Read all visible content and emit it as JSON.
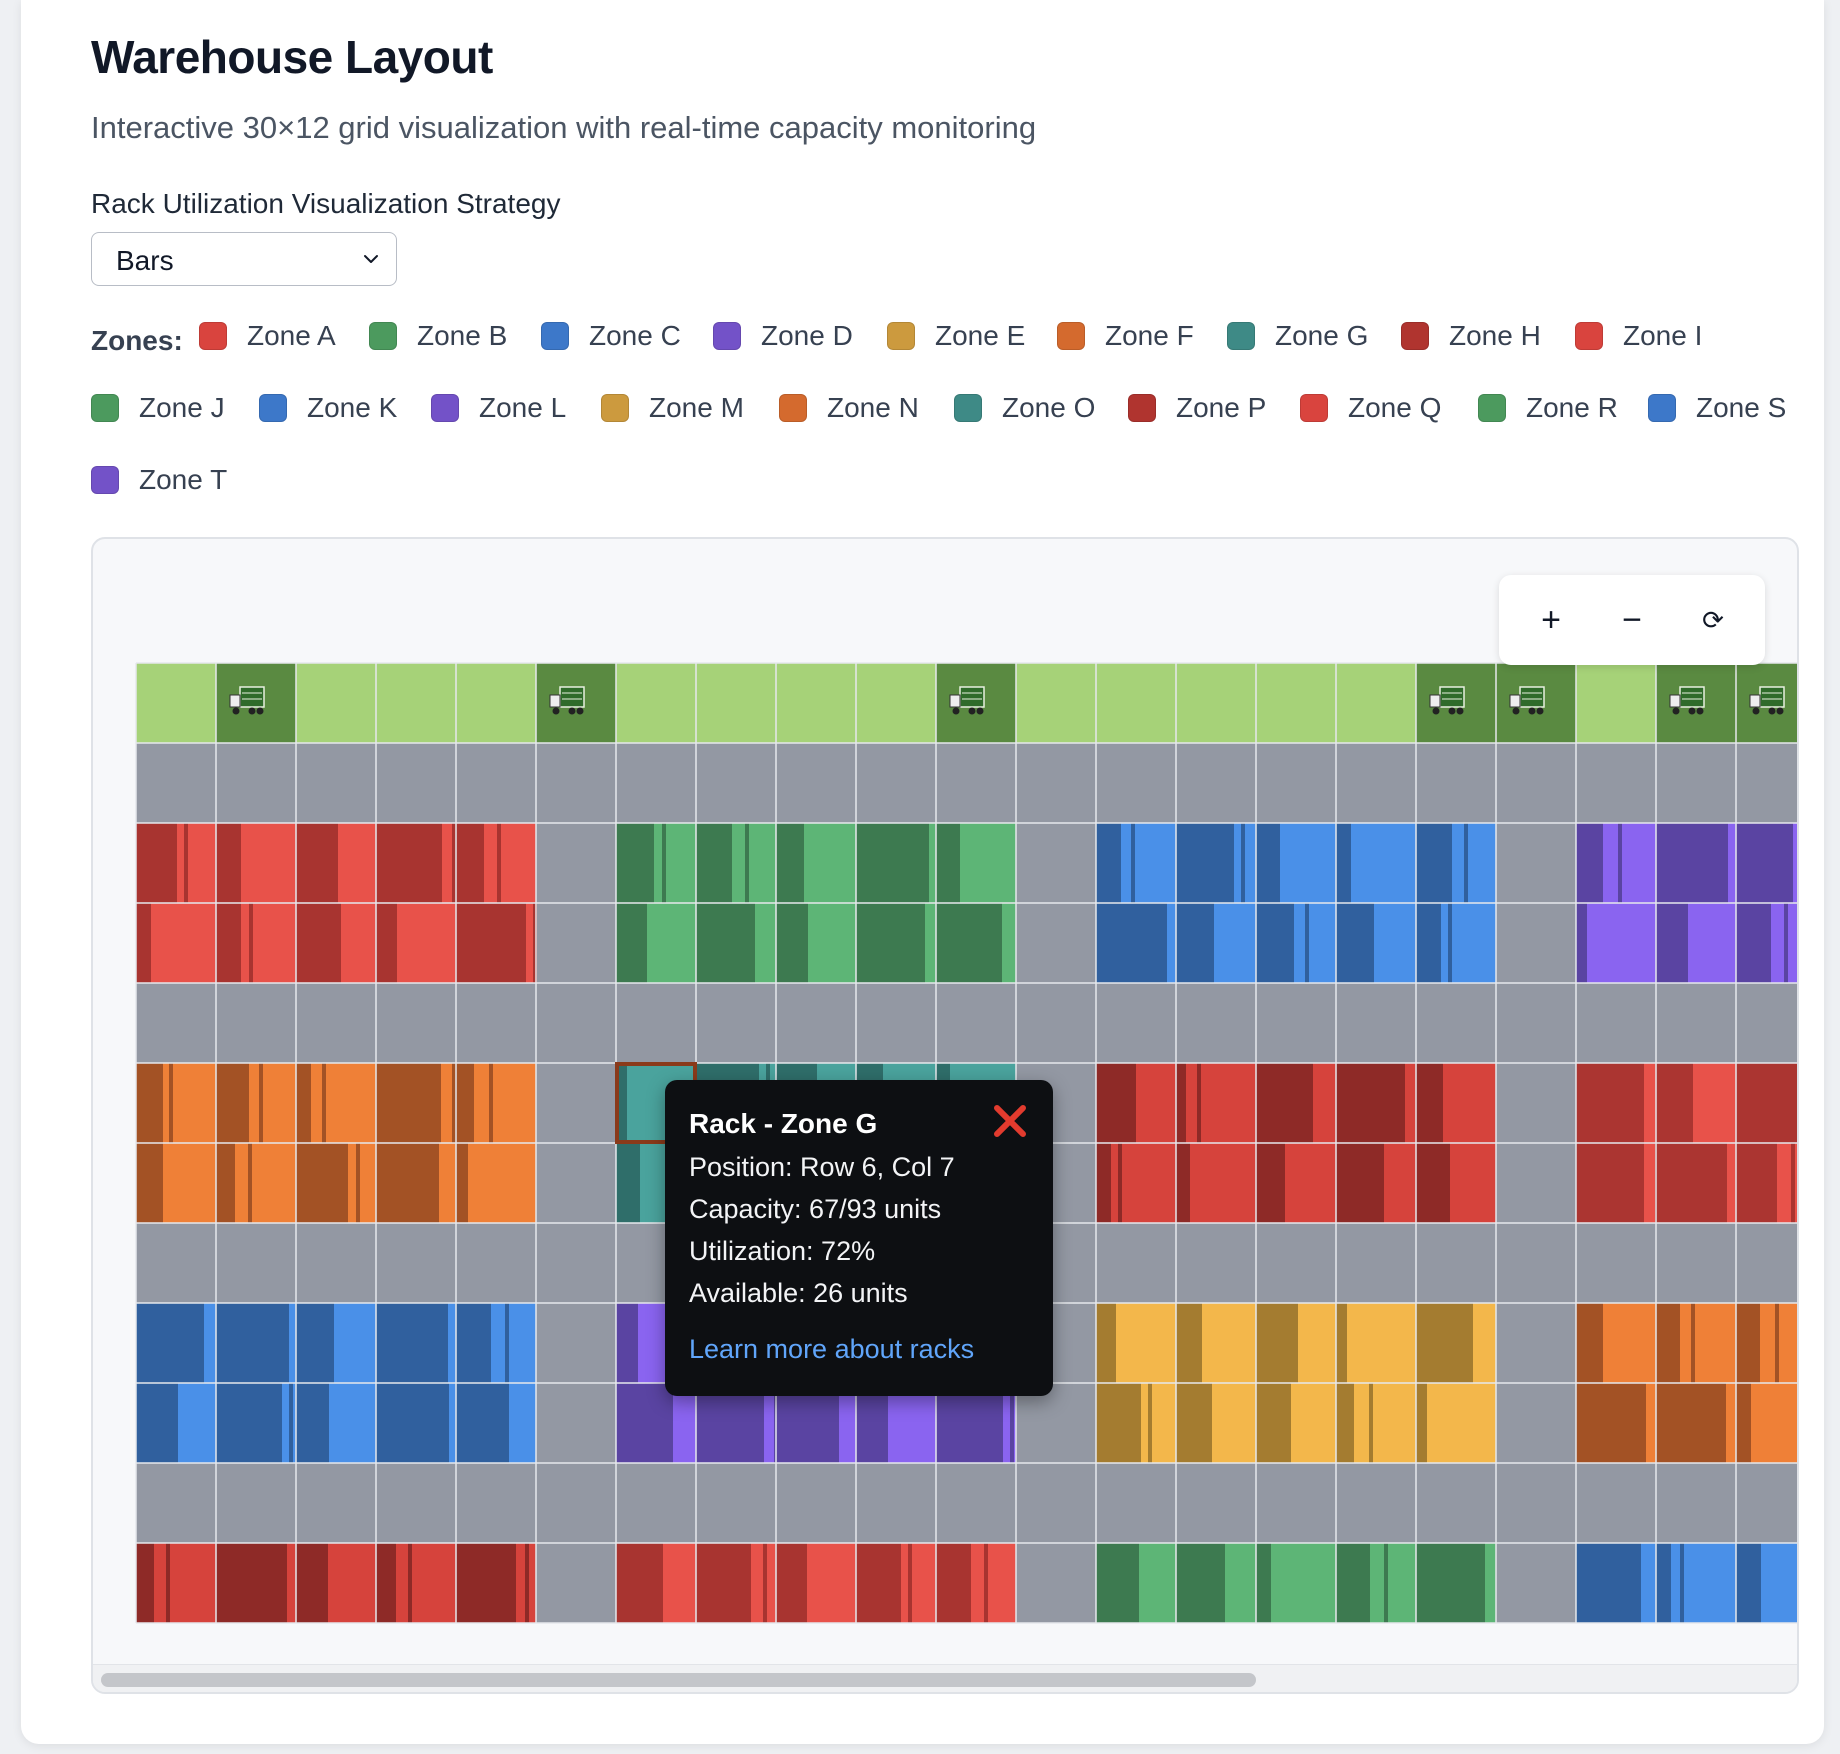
{
  "page": {
    "title": "Warehouse Layout",
    "subtitle": "Interactive 30×12 grid visualization with real-time capacity monitoring"
  },
  "strategy": {
    "label": "Rack Utilization Visualization Strategy",
    "selected": "Bars"
  },
  "legend": {
    "label": "Zones:",
    "zones": [
      {
        "name": "Zone A",
        "color": "#d9443e"
      },
      {
        "name": "Zone B",
        "color": "#4c9a5e"
      },
      {
        "name": "Zone C",
        "color": "#3d78c9"
      },
      {
        "name": "Zone D",
        "color": "#7352c8"
      },
      {
        "name": "Zone E",
        "color": "#cc9a3e"
      },
      {
        "name": "Zone F",
        "color": "#d46a2e"
      },
      {
        "name": "Zone G",
        "color": "#3e8a86"
      },
      {
        "name": "Zone H",
        "color": "#b0342f"
      },
      {
        "name": "Zone I",
        "color": "#d9443e"
      },
      {
        "name": "Zone J",
        "color": "#4c9a5e"
      },
      {
        "name": "Zone K",
        "color": "#3d78c9"
      },
      {
        "name": "Zone L",
        "color": "#7352c8"
      },
      {
        "name": "Zone M",
        "color": "#cc9a3e"
      },
      {
        "name": "Zone N",
        "color": "#d46a2e"
      },
      {
        "name": "Zone O",
        "color": "#3e8a86"
      },
      {
        "name": "Zone P",
        "color": "#b0342f"
      },
      {
        "name": "Zone Q",
        "color": "#d9443e"
      },
      {
        "name": "Zone R",
        "color": "#4c9a5e"
      },
      {
        "name": "Zone S",
        "color": "#3d78c9"
      },
      {
        "name": "Zone T",
        "color": "#7352c8"
      }
    ]
  },
  "zoom_controls": {
    "zoom_in": "+",
    "zoom_out": "−",
    "reset": "⟳"
  },
  "grid": {
    "dock_columns": [
      1,
      5,
      10,
      16,
      17,
      19,
      20
    ],
    "dock_icon": "truck-icon",
    "blocks": [
      {
        "zone": "Zone A",
        "rows": [
          2,
          3
        ],
        "cols": [
          0,
          4
        ],
        "dark": "#a83430",
        "light": "#e8524a"
      },
      {
        "zone": "Zone B",
        "rows": [
          2,
          3
        ],
        "cols": [
          6,
          10
        ],
        "dark": "#3d7a50",
        "light": "#5db576"
      },
      {
        "zone": "Zone C",
        "rows": [
          2,
          3
        ],
        "cols": [
          12,
          16
        ],
        "dark": "#30609e",
        "light": "#4a90e8"
      },
      {
        "zone": "Zone D",
        "rows": [
          2,
          3
        ],
        "cols": [
          18,
          20
        ],
        "dark": "#5a44a2",
        "light": "#8a64f0"
      },
      {
        "zone": "Zone F",
        "rows": [
          5,
          6
        ],
        "cols": [
          0,
          4
        ],
        "dark": "#a35225",
        "light": "#ef8037"
      },
      {
        "zone": "Zone G",
        "rows": [
          5,
          6
        ],
        "cols": [
          6,
          10
        ],
        "dark": "#2f6e6a",
        "light": "#4aa39d"
      },
      {
        "zone": "Zone H",
        "rows": [
          5,
          6
        ],
        "cols": [
          12,
          16
        ],
        "dark": "#8e2a27",
        "light": "#d6433c"
      },
      {
        "zone": "Zone I",
        "rows": [
          5,
          6
        ],
        "cols": [
          18,
          20
        ],
        "dark": "#ab3531",
        "light": "#e8524a"
      },
      {
        "zone": "Zone K",
        "rows": [
          8,
          9
        ],
        "cols": [
          0,
          4
        ],
        "dark": "#30609e",
        "light": "#4a90e8"
      },
      {
        "zone": "Zone L",
        "rows": [
          8,
          9
        ],
        "cols": [
          6,
          10
        ],
        "dark": "#5a44a2",
        "light": "#8a64f0"
      },
      {
        "zone": "Zone M",
        "rows": [
          8,
          9
        ],
        "cols": [
          12,
          16
        ],
        "dark": "#a47c30",
        "light": "#f3b74b"
      },
      {
        "zone": "Zone N",
        "rows": [
          8,
          9
        ],
        "cols": [
          18,
          20
        ],
        "dark": "#a35225",
        "light": "#ef8037"
      },
      {
        "zone": "Zone P",
        "rows": [
          11,
          11
        ],
        "cols": [
          0,
          4
        ],
        "dark": "#8e2a27",
        "light": "#d6433c"
      },
      {
        "zone": "Zone Q",
        "rows": [
          11,
          11
        ],
        "cols": [
          6,
          10
        ],
        "dark": "#a83430",
        "light": "#e8524a"
      },
      {
        "zone": "Zone R",
        "rows": [
          11,
          11
        ],
        "cols": [
          12,
          16
        ],
        "dark": "#3d7a50",
        "light": "#5db576"
      },
      {
        "zone": "Zone S",
        "rows": [
          11,
          11
        ],
        "cols": [
          18,
          20
        ],
        "dark": "#30609e",
        "light": "#4a90e8"
      }
    ],
    "selected_cell": {
      "row": 5,
      "col": 6
    }
  },
  "tooltip": {
    "title": "Rack - Zone G",
    "position": "Position: Row 6, Col 7",
    "capacity": "Capacity: 67/93 units",
    "utilization": "Utilization: 72%",
    "available": "Available: 26 units",
    "link": "Learn more about racks"
  }
}
